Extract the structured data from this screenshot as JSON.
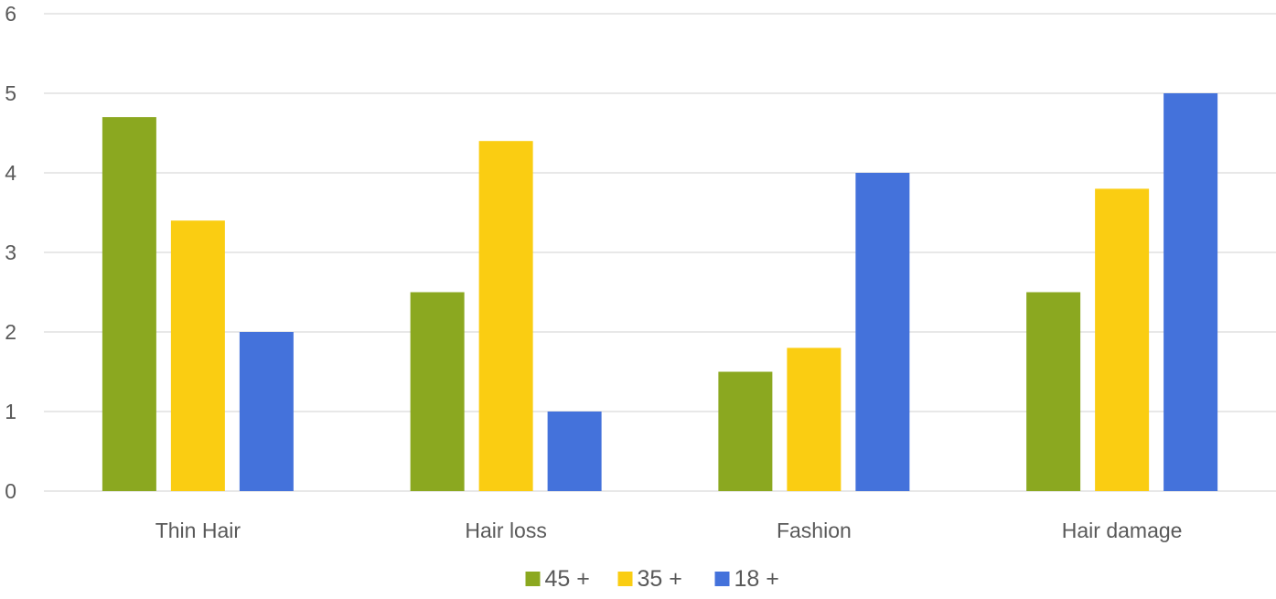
{
  "chart_data": {
    "type": "bar",
    "title": "",
    "xlabel": "",
    "ylabel": "",
    "categories": [
      "Thin Hair",
      "Hair loss",
      "Fashion",
      "Hair damage"
    ],
    "series": [
      {
        "name": "45 +",
        "color": "#8ba820",
        "values": [
          4.7,
          2.5,
          1.5,
          2.5
        ]
      },
      {
        "name": "35 +",
        "color": "#facd12",
        "values": [
          3.4,
          4.4,
          1.8,
          3.8
        ]
      },
      {
        "name": "18 +",
        "color": "#4472db",
        "values": [
          2.0,
          1.0,
          4.0,
          5.0
        ]
      }
    ],
    "ylim": [
      0,
      6
    ],
    "yticks": [
      "0",
      "1",
      "2",
      "3",
      "4",
      "5",
      "6"
    ],
    "grid": true,
    "legend_position": "bottom"
  }
}
